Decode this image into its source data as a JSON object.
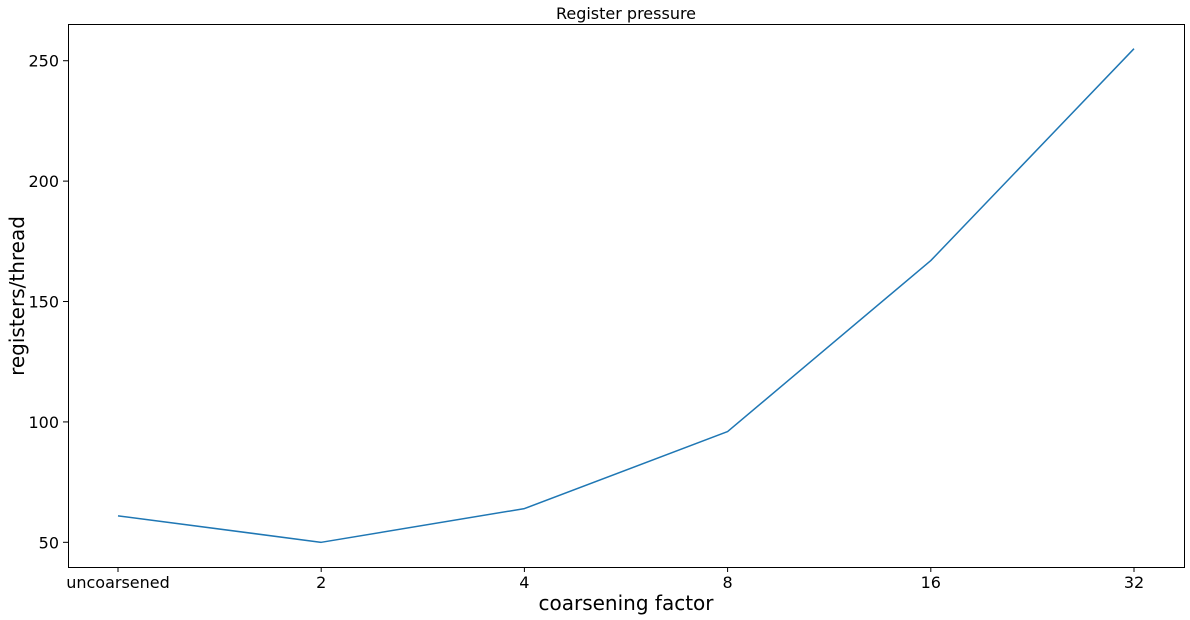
{
  "chart_data": {
    "type": "line",
    "title": "Register pressure",
    "xlabel": "coarsening factor",
    "ylabel": "registers/thread",
    "categories": [
      "uncoarsened",
      "2",
      "4",
      "8",
      "16",
      "32"
    ],
    "series": [
      {
        "values": [
          61,
          50,
          64,
          96,
          167,
          255
        ],
        "color": "#1f77b4"
      }
    ],
    "ylim": [
      39.75,
      265.25
    ],
    "yticks": [
      50,
      100,
      150,
      200,
      250
    ],
    "grid": false,
    "legend": "none"
  }
}
